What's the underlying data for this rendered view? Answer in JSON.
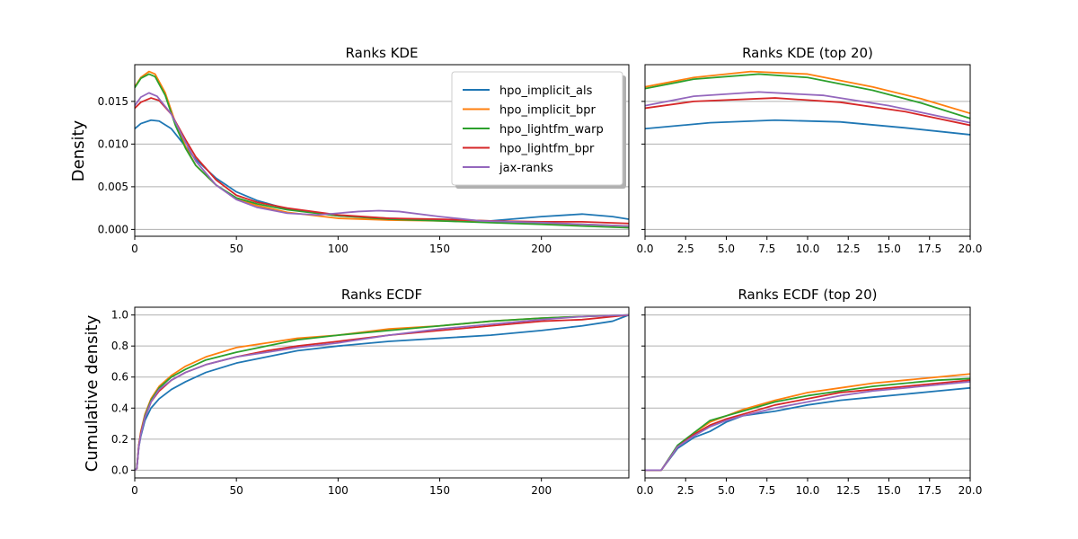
{
  "figure": {
    "y_label_density": "Density",
    "y_label_cumulative": "Cumulative density"
  },
  "colors": {
    "hpo_implicit_als": "#1f77b4",
    "hpo_implicit_bpr": "#ff7f0e",
    "hpo_lightfm_warp": "#2ca02c",
    "hpo_lightfm_bpr": "#d62728",
    "jax-ranks": "#9467bd"
  },
  "chart_data": [
    {
      "id": "kde",
      "type": "line",
      "title": "Ranks KDE",
      "xlabel": "",
      "ylabel": "Density",
      "xlim": [
        0,
        243
      ],
      "ylim": [
        -0.0008,
        0.0193
      ],
      "xticks": [
        0,
        50,
        100,
        150,
        200
      ],
      "yticks": [
        0.0,
        0.005,
        0.01,
        0.015
      ],
      "ytick_labels": [
        "0.000",
        "0.005",
        "0.010",
        "0.015"
      ],
      "grid": "y",
      "legend": "top-right",
      "series": [
        {
          "name": "hpo_implicit_als",
          "x": [
            0,
            3,
            8,
            12,
            18,
            25,
            30,
            40,
            50,
            60,
            75,
            100,
            125,
            150,
            175,
            200,
            220,
            235,
            243
          ],
          "y": [
            0.0118,
            0.0124,
            0.0128,
            0.0127,
            0.0118,
            0.0097,
            0.0082,
            0.006,
            0.0044,
            0.0034,
            0.0024,
            0.0016,
            0.0013,
            0.0011,
            0.001,
            0.0015,
            0.0018,
            0.0015,
            0.0012
          ]
        },
        {
          "name": "hpo_implicit_bpr",
          "x": [
            0,
            3,
            7,
            10,
            15,
            20,
            25,
            30,
            40,
            50,
            60,
            75,
            100,
            125,
            150,
            175,
            200,
            220,
            243
          ],
          "y": [
            0.0167,
            0.0178,
            0.0185,
            0.0182,
            0.016,
            0.0125,
            0.0097,
            0.0075,
            0.0052,
            0.0036,
            0.0028,
            0.002,
            0.0013,
            0.0011,
            0.001,
            0.0009,
            0.0007,
            0.0006,
            0.0004
          ]
        },
        {
          "name": "hpo_lightfm_warp",
          "x": [
            0,
            3,
            7,
            10,
            15,
            20,
            25,
            30,
            40,
            50,
            60,
            75,
            100,
            125,
            150,
            175,
            200,
            220,
            243
          ],
          "y": [
            0.0166,
            0.0177,
            0.0182,
            0.0179,
            0.0157,
            0.0122,
            0.0095,
            0.0075,
            0.0052,
            0.0037,
            0.003,
            0.0023,
            0.0016,
            0.0012,
            0.001,
            0.0008,
            0.0006,
            0.0004,
            0.0002
          ]
        },
        {
          "name": "hpo_lightfm_bpr",
          "x": [
            0,
            3,
            8,
            12,
            18,
            25,
            30,
            40,
            50,
            60,
            75,
            100,
            125,
            150,
            175,
            200,
            220,
            243
          ],
          "y": [
            0.0142,
            0.0149,
            0.0154,
            0.0151,
            0.0135,
            0.0105,
            0.0085,
            0.0058,
            0.004,
            0.0032,
            0.0025,
            0.0017,
            0.0013,
            0.0012,
            0.001,
            0.0009,
            0.0009,
            0.0007
          ]
        },
        {
          "name": "jax-ranks",
          "x": [
            0,
            3,
            7,
            11,
            18,
            25,
            30,
            40,
            50,
            60,
            75,
            90,
            100,
            110,
            120,
            130,
            150,
            170,
            200,
            220,
            243
          ],
          "y": [
            0.0145,
            0.0155,
            0.016,
            0.0156,
            0.0135,
            0.0102,
            0.008,
            0.0052,
            0.0035,
            0.0026,
            0.0019,
            0.0017,
            0.0019,
            0.0021,
            0.0022,
            0.0021,
            0.0015,
            0.001,
            0.0008,
            0.0006,
            0.0004
          ]
        }
      ]
    },
    {
      "id": "kde_top",
      "type": "line",
      "title": "Ranks KDE (top 20)",
      "xlim": [
        0,
        20
      ],
      "ylim": [
        -0.0008,
        0.0193
      ],
      "xticks": [
        0,
        2.5,
        5,
        7.5,
        10,
        12.5,
        15,
        17.5,
        20
      ],
      "xtick_labels": [
        "0.0",
        "2.5",
        "5.0",
        "7.5",
        "10.0",
        "12.5",
        "15.0",
        "17.5",
        "20.0"
      ],
      "yticks": [
        0.0,
        0.005,
        0.01,
        0.015
      ],
      "grid": "y",
      "series": [
        {
          "name": "hpo_implicit_als",
          "x": [
            0,
            4,
            8,
            12,
            16,
            20
          ],
          "y": [
            0.0118,
            0.0125,
            0.0128,
            0.0126,
            0.0119,
            0.0111
          ]
        },
        {
          "name": "hpo_implicit_bpr",
          "x": [
            0,
            3,
            6.5,
            10,
            14,
            17,
            20
          ],
          "y": [
            0.0167,
            0.0178,
            0.0185,
            0.0182,
            0.0167,
            0.0153,
            0.0136
          ]
        },
        {
          "name": "hpo_lightfm_warp",
          "x": [
            0,
            3,
            7,
            10,
            14,
            17,
            20
          ],
          "y": [
            0.0165,
            0.0176,
            0.0182,
            0.0178,
            0.0163,
            0.0148,
            0.013
          ]
        },
        {
          "name": "hpo_lightfm_bpr",
          "x": [
            0,
            3,
            8,
            12,
            16,
            20
          ],
          "y": [
            0.0142,
            0.015,
            0.0154,
            0.0149,
            0.0138,
            0.0122
          ]
        },
        {
          "name": "jax-ranks",
          "x": [
            0,
            3,
            7,
            11,
            15,
            20
          ],
          "y": [
            0.0145,
            0.0156,
            0.0161,
            0.0157,
            0.0145,
            0.0125
          ]
        }
      ]
    },
    {
      "id": "ecdf",
      "type": "line",
      "title": "Ranks ECDF",
      "ylabel": "Cumulative density",
      "xlim": [
        0,
        243
      ],
      "ylim": [
        -0.05,
        1.05
      ],
      "xticks": [
        0,
        50,
        100,
        150,
        200
      ],
      "yticks": [
        0.0,
        0.2,
        0.4,
        0.6,
        0.8,
        1.0
      ],
      "ytick_labels": [
        "0.0",
        "0.2",
        "0.4",
        "0.6",
        "0.8",
        "1.0"
      ],
      "grid": "y",
      "series": [
        {
          "name": "hpo_implicit_als",
          "x": [
            0,
            1,
            2,
            3,
            5,
            8,
            12,
            18,
            25,
            35,
            50,
            65,
            80,
            100,
            125,
            150,
            175,
            200,
            220,
            235,
            243
          ],
          "y": [
            0,
            0.01,
            0.15,
            0.22,
            0.32,
            0.4,
            0.46,
            0.52,
            0.57,
            0.63,
            0.69,
            0.73,
            0.77,
            0.8,
            0.83,
            0.85,
            0.87,
            0.9,
            0.93,
            0.96,
            1.0
          ]
        },
        {
          "name": "hpo_implicit_bpr",
          "x": [
            0,
            1,
            2,
            3,
            5,
            8,
            12,
            18,
            25,
            35,
            50,
            65,
            80,
            100,
            125,
            150,
            175,
            200,
            220,
            243
          ],
          "y": [
            0,
            0.01,
            0.16,
            0.25,
            0.36,
            0.46,
            0.54,
            0.61,
            0.67,
            0.73,
            0.79,
            0.82,
            0.85,
            0.87,
            0.91,
            0.93,
            0.96,
            0.98,
            0.99,
            1.0
          ]
        },
        {
          "name": "hpo_lightfm_warp",
          "x": [
            0,
            1,
            2,
            3,
            5,
            8,
            12,
            18,
            25,
            35,
            50,
            65,
            80,
            100,
            125,
            150,
            175,
            200,
            220,
            243
          ],
          "y": [
            0,
            0.01,
            0.16,
            0.24,
            0.35,
            0.45,
            0.53,
            0.6,
            0.65,
            0.71,
            0.76,
            0.8,
            0.84,
            0.87,
            0.9,
            0.93,
            0.96,
            0.98,
            0.99,
            1.0
          ]
        },
        {
          "name": "hpo_lightfm_bpr",
          "x": [
            0,
            1,
            2,
            3,
            5,
            8,
            12,
            18,
            25,
            35,
            50,
            65,
            80,
            100,
            125,
            150,
            175,
            200,
            220,
            243
          ],
          "y": [
            0,
            0.01,
            0.16,
            0.24,
            0.34,
            0.44,
            0.51,
            0.58,
            0.63,
            0.68,
            0.73,
            0.77,
            0.8,
            0.83,
            0.87,
            0.9,
            0.93,
            0.96,
            0.97,
            1.0
          ]
        },
        {
          "name": "jax-ranks",
          "x": [
            0,
            1,
            2,
            3,
            5,
            8,
            12,
            18,
            25,
            35,
            50,
            65,
            80,
            100,
            125,
            150,
            175,
            200,
            220,
            243
          ],
          "y": [
            0,
            0.01,
            0.15,
            0.23,
            0.34,
            0.44,
            0.52,
            0.58,
            0.63,
            0.68,
            0.73,
            0.76,
            0.79,
            0.82,
            0.87,
            0.91,
            0.94,
            0.97,
            0.99,
            1.0
          ]
        }
      ]
    },
    {
      "id": "ecdf_top",
      "type": "line",
      "title": "Ranks ECDF (top 20)",
      "xlim": [
        0,
        20
      ],
      "ylim": [
        -0.05,
        1.05
      ],
      "xticks": [
        0,
        2.5,
        5,
        7.5,
        10,
        12.5,
        15,
        17.5,
        20
      ],
      "xtick_labels": [
        "0.0",
        "2.5",
        "5.0",
        "7.5",
        "10.0",
        "12.5",
        "15.0",
        "17.5",
        "20.0"
      ],
      "yticks": [
        0.0,
        0.2,
        0.4,
        0.6,
        0.8,
        1.0
      ],
      "grid": "y",
      "series": [
        {
          "name": "hpo_implicit_als",
          "x": [
            0,
            1,
            2,
            3,
            4,
            5,
            6,
            8,
            10,
            12,
            14,
            16,
            18,
            20
          ],
          "y": [
            0,
            0,
            0.14,
            0.21,
            0.25,
            0.31,
            0.35,
            0.38,
            0.42,
            0.45,
            0.47,
            0.49,
            0.51,
            0.53
          ]
        },
        {
          "name": "hpo_implicit_bpr",
          "x": [
            0,
            1,
            2,
            3,
            4,
            5,
            6,
            8,
            10,
            12,
            14,
            16,
            18,
            20
          ],
          "y": [
            0,
            0,
            0.15,
            0.24,
            0.31,
            0.35,
            0.39,
            0.45,
            0.5,
            0.53,
            0.56,
            0.58,
            0.6,
            0.62
          ]
        },
        {
          "name": "hpo_lightfm_warp",
          "x": [
            0,
            1,
            2,
            3,
            4,
            5,
            6,
            8,
            10,
            12,
            14,
            16,
            18,
            20
          ],
          "y": [
            0,
            0,
            0.16,
            0.24,
            0.32,
            0.35,
            0.38,
            0.44,
            0.48,
            0.51,
            0.54,
            0.56,
            0.58,
            0.59
          ]
        },
        {
          "name": "hpo_lightfm_bpr",
          "x": [
            0,
            1,
            2,
            3,
            4,
            5,
            6,
            8,
            10,
            12,
            14,
            16,
            18,
            20
          ],
          "y": [
            0,
            0,
            0.15,
            0.23,
            0.29,
            0.33,
            0.36,
            0.42,
            0.46,
            0.5,
            0.52,
            0.54,
            0.56,
            0.58
          ]
        },
        {
          "name": "jax-ranks",
          "x": [
            0,
            1,
            2,
            3,
            4,
            5,
            6,
            8,
            10,
            12,
            14,
            16,
            18,
            20
          ],
          "y": [
            0,
            0,
            0.15,
            0.22,
            0.28,
            0.32,
            0.35,
            0.4,
            0.44,
            0.48,
            0.51,
            0.53,
            0.55,
            0.57
          ]
        }
      ]
    }
  ]
}
